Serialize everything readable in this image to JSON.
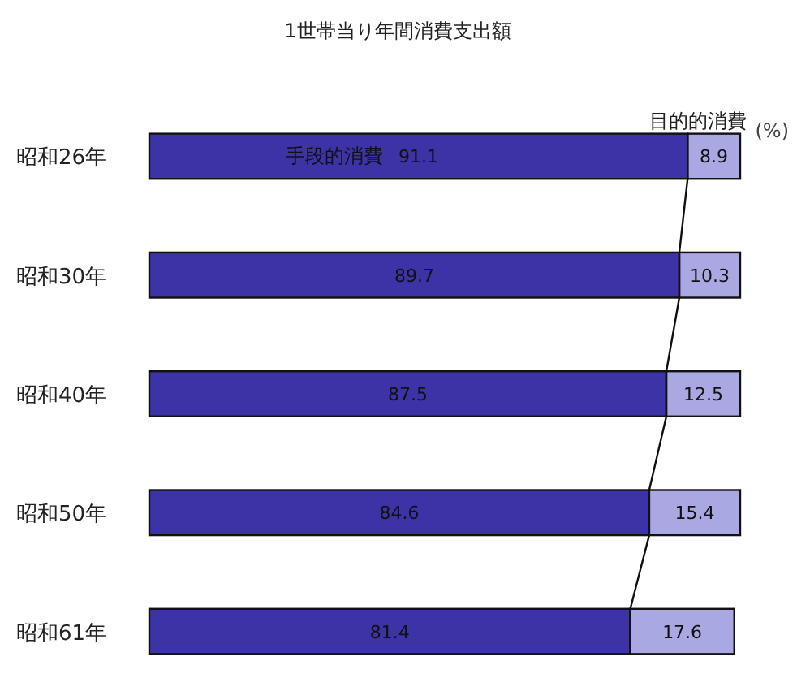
{
  "chart_data": {
    "type": "bar",
    "orientation": "horizontal",
    "stacked": true,
    "title": "1世帯当り年間消費支出額",
    "xlabel": "(%)",
    "categories": [
      "昭和26年",
      "昭和30年",
      "昭和40年",
      "昭和50年",
      "昭和61年"
    ],
    "xlim": [
      0,
      100
    ],
    "data_labels": true,
    "series": [
      {
        "name": "手段的消費",
        "color": "#3b33a6",
        "values": [
          91.1,
          89.7,
          87.5,
          84.6,
          81.4
        ]
      },
      {
        "name": "目的的消費",
        "color": "#aaa8e2",
        "values": [
          8.9,
          10.3,
          12.5,
          15.4,
          17.6
        ]
      }
    ]
  }
}
